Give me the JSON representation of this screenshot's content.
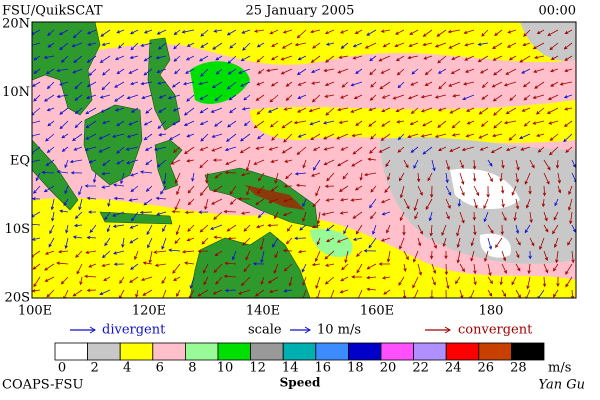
{
  "header": {
    "source": "FSU/QuikSCAT",
    "date": "25 January 2005",
    "time": "00:00"
  },
  "map": {
    "lat_labels": [
      "20N",
      "10N",
      "EQ",
      "10S",
      "20S"
    ],
    "lon_labels": [
      "100E",
      "120E",
      "140E",
      "160E",
      "180"
    ]
  },
  "legend": {
    "divergent": "divergent",
    "scale": "scale",
    "scale_value": "10 m/s",
    "convergent": "convergent",
    "divergent_color": "#1010cc",
    "convergent_color": "#a00000"
  },
  "colorbar": {
    "labels": [
      0,
      2,
      4,
      6,
      8,
      10,
      12,
      14,
      16,
      18,
      20,
      22,
      24,
      26,
      28
    ],
    "unit": "m/s",
    "title": "Speed",
    "colors": [
      "#ffffff",
      "#c8c8c8",
      "#ffff00",
      "#ffc0cb",
      "#98fb98",
      "#00e000",
      "#999999",
      "#00b0b0",
      "#3c8cff",
      "#0000c8",
      "#ff50ff",
      "#b090ff",
      "#ff0000",
      "#c84000",
      "#000000"
    ]
  },
  "footer": {
    "org": "COAPS-FSU",
    "author": "Yan Gu"
  }
}
